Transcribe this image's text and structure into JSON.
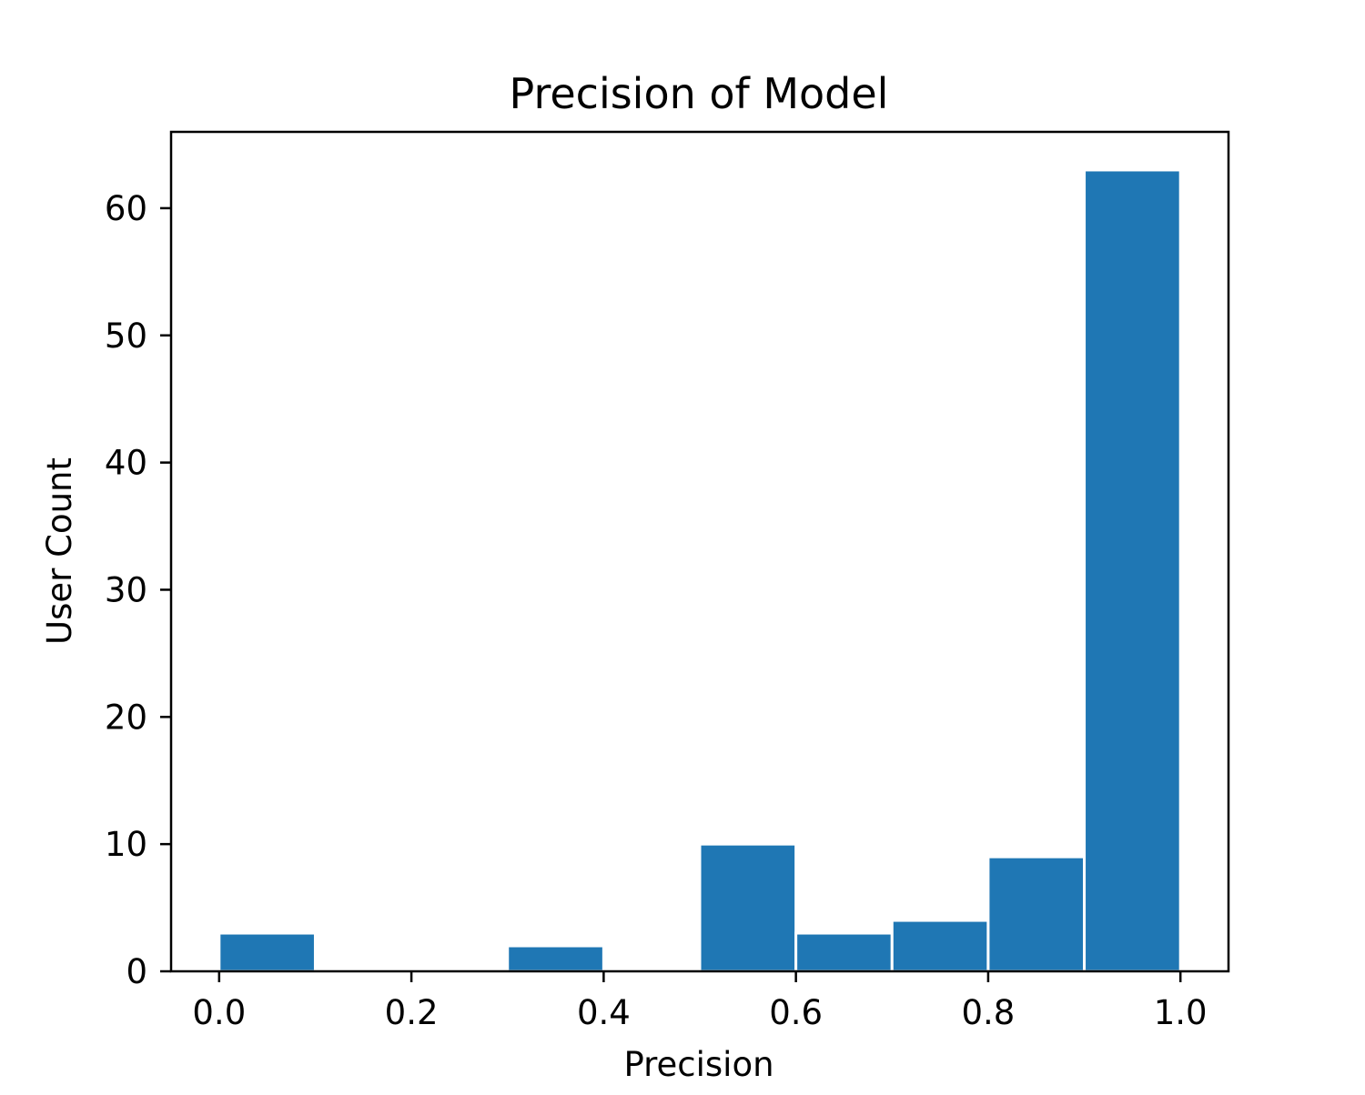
{
  "chart_data": {
    "type": "bar",
    "title": "Precision of Model",
    "xlabel": "Precision",
    "ylabel": "User Count",
    "bins": [
      {
        "start": 0.0,
        "end": 0.1,
        "count": 3
      },
      {
        "start": 0.1,
        "end": 0.2,
        "count": 0
      },
      {
        "start": 0.2,
        "end": 0.3,
        "count": 0
      },
      {
        "start": 0.3,
        "end": 0.4,
        "count": 2
      },
      {
        "start": 0.4,
        "end": 0.5,
        "count": 0
      },
      {
        "start": 0.5,
        "end": 0.6,
        "count": 10
      },
      {
        "start": 0.6,
        "end": 0.7,
        "count": 3
      },
      {
        "start": 0.7,
        "end": 0.8,
        "count": 4
      },
      {
        "start": 0.8,
        "end": 0.9,
        "count": 9
      },
      {
        "start": 0.9,
        "end": 1.0,
        "count": 63
      }
    ],
    "xlim": [
      -0.05,
      1.05
    ],
    "ylim": [
      0,
      66
    ],
    "xticks": [
      "0.0",
      "0.2",
      "0.4",
      "0.6",
      "0.8",
      "1.0"
    ],
    "yticks": [
      "0",
      "10",
      "20",
      "30",
      "40",
      "50",
      "60"
    ],
    "bar_color": "#1f77b4",
    "edge_color": "#ffffff",
    "grid": false,
    "legend": "none"
  }
}
